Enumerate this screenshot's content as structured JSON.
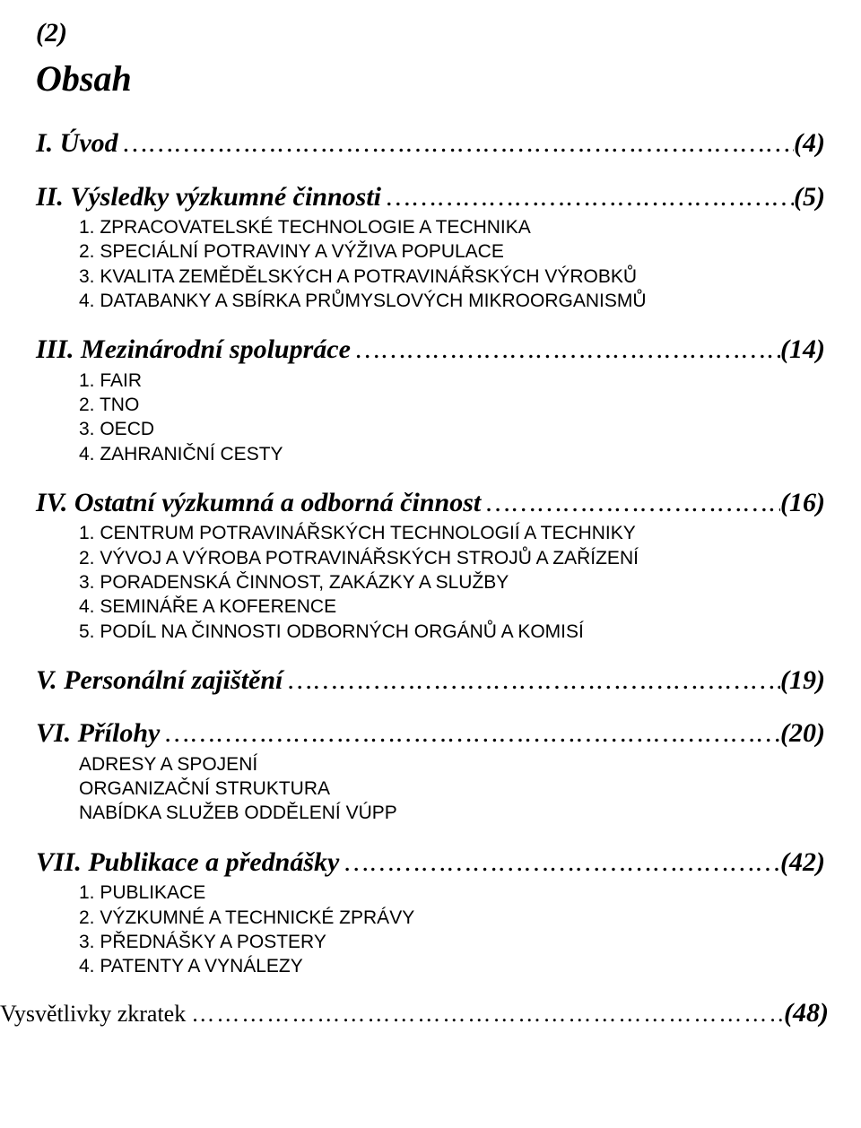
{
  "page_number_top": "(2)",
  "title": "Obsah",
  "leader_dots": "……………………………………………………………………………………………………………………………………",
  "sections": [
    {
      "head_label": "I.   Úvod",
      "head_page": "(4)",
      "subs": []
    },
    {
      "head_label": "II.  Výsledky výzkumné činnosti",
      "head_page": "(5)",
      "subs": [
        "1. ZPRACOVATELSKÉ TECHNOLOGIE A TECHNIKA",
        "2. SPECIÁLNÍ POTRAVINY A VÝŽIVA POPULACE",
        "3. KVALITA ZEMĚDĚLSKÝCH A POTRAVINÁŘSKÝCH VÝROBKŮ",
        "4. DATABANKY A SBÍRKA PRŮMYSLOVÝCH MIKROORGANISMŮ"
      ]
    },
    {
      "head_label": "III. Mezinárodní spolupráce",
      "head_page": "(14)",
      "subs": [
        "1. FAIR",
        "2. TNO",
        "3. OECD",
        "4. ZAHRANIČNÍ CESTY"
      ]
    },
    {
      "head_label": "IV. Ostatní výzkumná a odborná činnost",
      "head_page": "(16)",
      "subs": [
        "1. CENTRUM POTRAVINÁŘSKÝCH TECHNOLOGIÍ  A TECHNIKY",
        "2. VÝVOJ A VÝROBA POTRAVINÁŘSKÝCH STROJŮ A ZAŘÍZENÍ",
        "3. PORADENSKÁ ČINNOST, ZAKÁZKY A SLUŽBY",
        "4. SEMINÁŘE A KOFERENCE",
        "5. PODÍL NA ČINNOSTI ODBORNÝCH ORGÁNŮ A KOMISÍ"
      ]
    },
    {
      "head_label": "V.  Personální zajištění",
      "head_page": "(19)",
      "subs": []
    },
    {
      "head_label": "VI. Přílohy",
      "head_page": "(20)",
      "subs": [
        "ADRESY A SPOJENÍ",
        "ORGANIZAČNÍ STRUKTURA",
        "NABÍDKA SLUŽEB ODDĚLENÍ VÚPP"
      ]
    },
    {
      "head_label": "VII. Publikace a přednášky",
      "head_page": "(42)",
      "subs": [
        "1. PUBLIKACE",
        "2. VÝZKUMNÉ A TECHNICKÉ ZPRÁVY",
        "3. PŘEDNÁŠKY A POSTERY",
        "4. PATENTY A VYNÁLEZY"
      ]
    }
  ],
  "footer": {
    "label": "Vysvětlivky zkratek",
    "page": "(48)"
  }
}
